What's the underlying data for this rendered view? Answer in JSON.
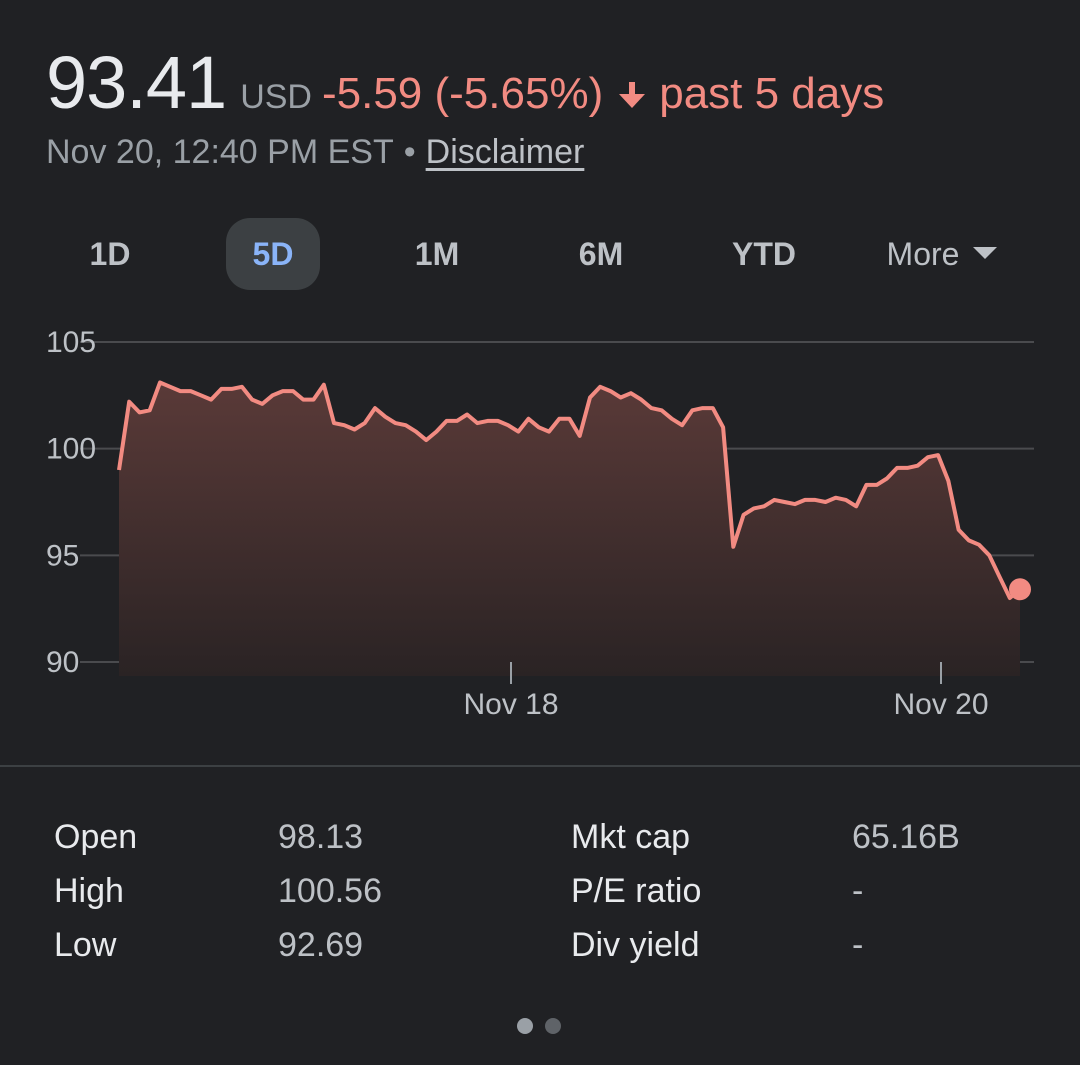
{
  "quote": {
    "price": "93.41",
    "currency": "USD",
    "change": "-5.59 (-5.65%)",
    "period": "past 5 days",
    "timestamp": "Nov 20, 12:40 PM EST",
    "separator": "•",
    "disclaimer": "Disclaimer",
    "direction_icon": "arrow-down-icon",
    "negative_color": "#f28b82"
  },
  "tabs": [
    {
      "label": "1D",
      "active": false
    },
    {
      "label": "5D",
      "active": true
    },
    {
      "label": "1M",
      "active": false
    },
    {
      "label": "6M",
      "active": false
    },
    {
      "label": "YTD",
      "active": false
    },
    {
      "label": "More",
      "active": false
    }
  ],
  "chart_data": {
    "type": "area",
    "y_ticks": [
      105,
      100,
      95,
      90
    ],
    "y_tick_labels": [
      "105",
      "100",
      "95",
      "90"
    ],
    "ylim": [
      90,
      105
    ],
    "x_ticks": [
      "Nov 18",
      "Nov 20"
    ],
    "grid": true,
    "line_color": "#f28b82",
    "series": [
      {
        "values": [
          99.0,
          102.2,
          101.7,
          101.8,
          103.1,
          102.9,
          102.7,
          102.7,
          102.5,
          102.3,
          102.8,
          102.8,
          102.9,
          102.3,
          102.1,
          102.5,
          102.7,
          102.7,
          102.3,
          102.3,
          103.0,
          101.2,
          101.1,
          100.9,
          101.2,
          101.9,
          101.5,
          101.2,
          101.1,
          100.8,
          100.4,
          100.8,
          101.3,
          101.3,
          101.6,
          101.2,
          101.3,
          101.3,
          101.1,
          100.8,
          101.4,
          101.0,
          100.8,
          101.4,
          101.4,
          100.6,
          102.4,
          102.9,
          102.7,
          102.4,
          102.6,
          102.3,
          101.9,
          101.8,
          101.4,
          101.1,
          101.8,
          101.9,
          101.9,
          101.0,
          95.4,
          96.9,
          97.2,
          97.3,
          97.6,
          97.5,
          97.4,
          97.6,
          97.6,
          97.5,
          97.7,
          97.6,
          97.3,
          98.3,
          98.3,
          98.6,
          99.1,
          99.1,
          99.2,
          99.6,
          99.7,
          98.5,
          96.2,
          95.7,
          95.5,
          95.0,
          94.0,
          93.0,
          93.41
        ]
      }
    ],
    "last_value": 93.41
  },
  "stats": {
    "left": [
      {
        "label": "Open",
        "value": "98.13"
      },
      {
        "label": "High",
        "value": "100.56"
      },
      {
        "label": "Low",
        "value": "92.69"
      }
    ],
    "right": [
      {
        "label": "Mkt cap",
        "value": "65.16B"
      },
      {
        "label": "P/E ratio",
        "value": "-"
      },
      {
        "label": "Div yield",
        "value": "-"
      }
    ]
  },
  "pager": {
    "pages": 2,
    "active_index": 0
  }
}
